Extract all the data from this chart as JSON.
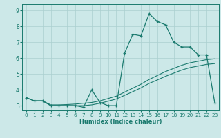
{
  "xlabel": "Humidex (Indice chaleur)",
  "x_values": [
    0,
    1,
    2,
    3,
    4,
    5,
    6,
    7,
    8,
    9,
    10,
    11,
    12,
    13,
    14,
    15,
    16,
    17,
    18,
    19,
    20,
    21,
    22,
    23
  ],
  "y_main": [
    3.5,
    3.3,
    3.3,
    3.0,
    3.0,
    3.0,
    3.0,
    2.9,
    4.0,
    3.2,
    3.0,
    3.0,
    6.3,
    7.5,
    7.4,
    8.8,
    8.3,
    8.1,
    7.0,
    6.7,
    6.7,
    6.2,
    6.2,
    3.2
  ],
  "y_upper": [
    3.5,
    3.3,
    3.3,
    3.05,
    3.05,
    3.07,
    3.1,
    3.15,
    3.2,
    3.3,
    3.45,
    3.6,
    3.85,
    4.1,
    4.35,
    4.65,
    4.9,
    5.15,
    5.35,
    5.55,
    5.7,
    5.8,
    5.9,
    5.95
  ],
  "y_lower": [
    3.5,
    3.3,
    3.3,
    3.0,
    3.0,
    3.0,
    3.0,
    3.0,
    3.05,
    3.15,
    3.28,
    3.42,
    3.65,
    3.88,
    4.12,
    4.4,
    4.62,
    4.85,
    5.05,
    5.25,
    5.4,
    5.5,
    5.6,
    5.65
  ],
  "line_color": "#1a7a6e",
  "bg_color": "#cce8e8",
  "grid_color": "#aacfcf",
  "ylim": [
    2.7,
    9.4
  ],
  "xlim": [
    -0.5,
    23.5
  ],
  "yticks": [
    3,
    4,
    5,
    6,
    7,
    8,
    9
  ],
  "xticks": [
    0,
    1,
    2,
    3,
    4,
    5,
    6,
    7,
    8,
    9,
    10,
    11,
    12,
    13,
    14,
    15,
    16,
    17,
    18,
    19,
    20,
    21,
    22,
    23
  ]
}
